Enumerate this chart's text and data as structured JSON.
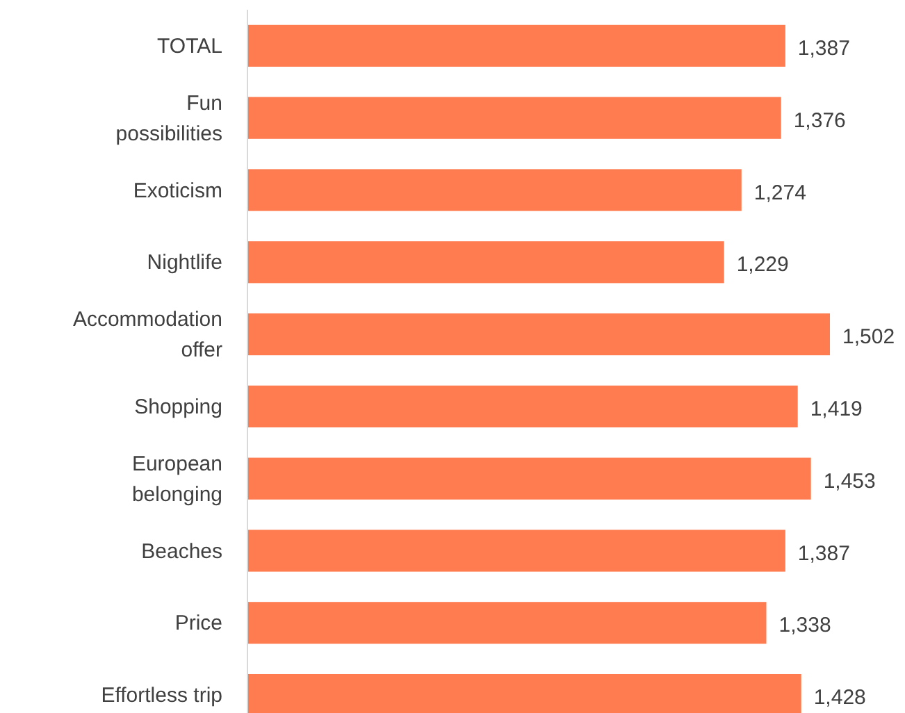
{
  "chart_data": {
    "type": "bar",
    "orientation": "horizontal",
    "categories": [
      "TOTAL",
      "Fun possibilities",
      "Exoticism",
      "Nightlife",
      "Accommodation offer",
      "Shopping",
      "European belonging",
      "Beaches",
      "Price",
      "Effortless trip"
    ],
    "values": [
      1387,
      1376,
      1274,
      1229,
      1502,
      1419,
      1453,
      1387,
      1338,
      1428
    ],
    "value_labels": [
      "1,387",
      "1,376",
      "1,274",
      "1,229",
      "1,502",
      "1,419",
      "1,453",
      "1,387",
      "1,338",
      "1,428"
    ],
    "color": "#ff7c50"
  }
}
